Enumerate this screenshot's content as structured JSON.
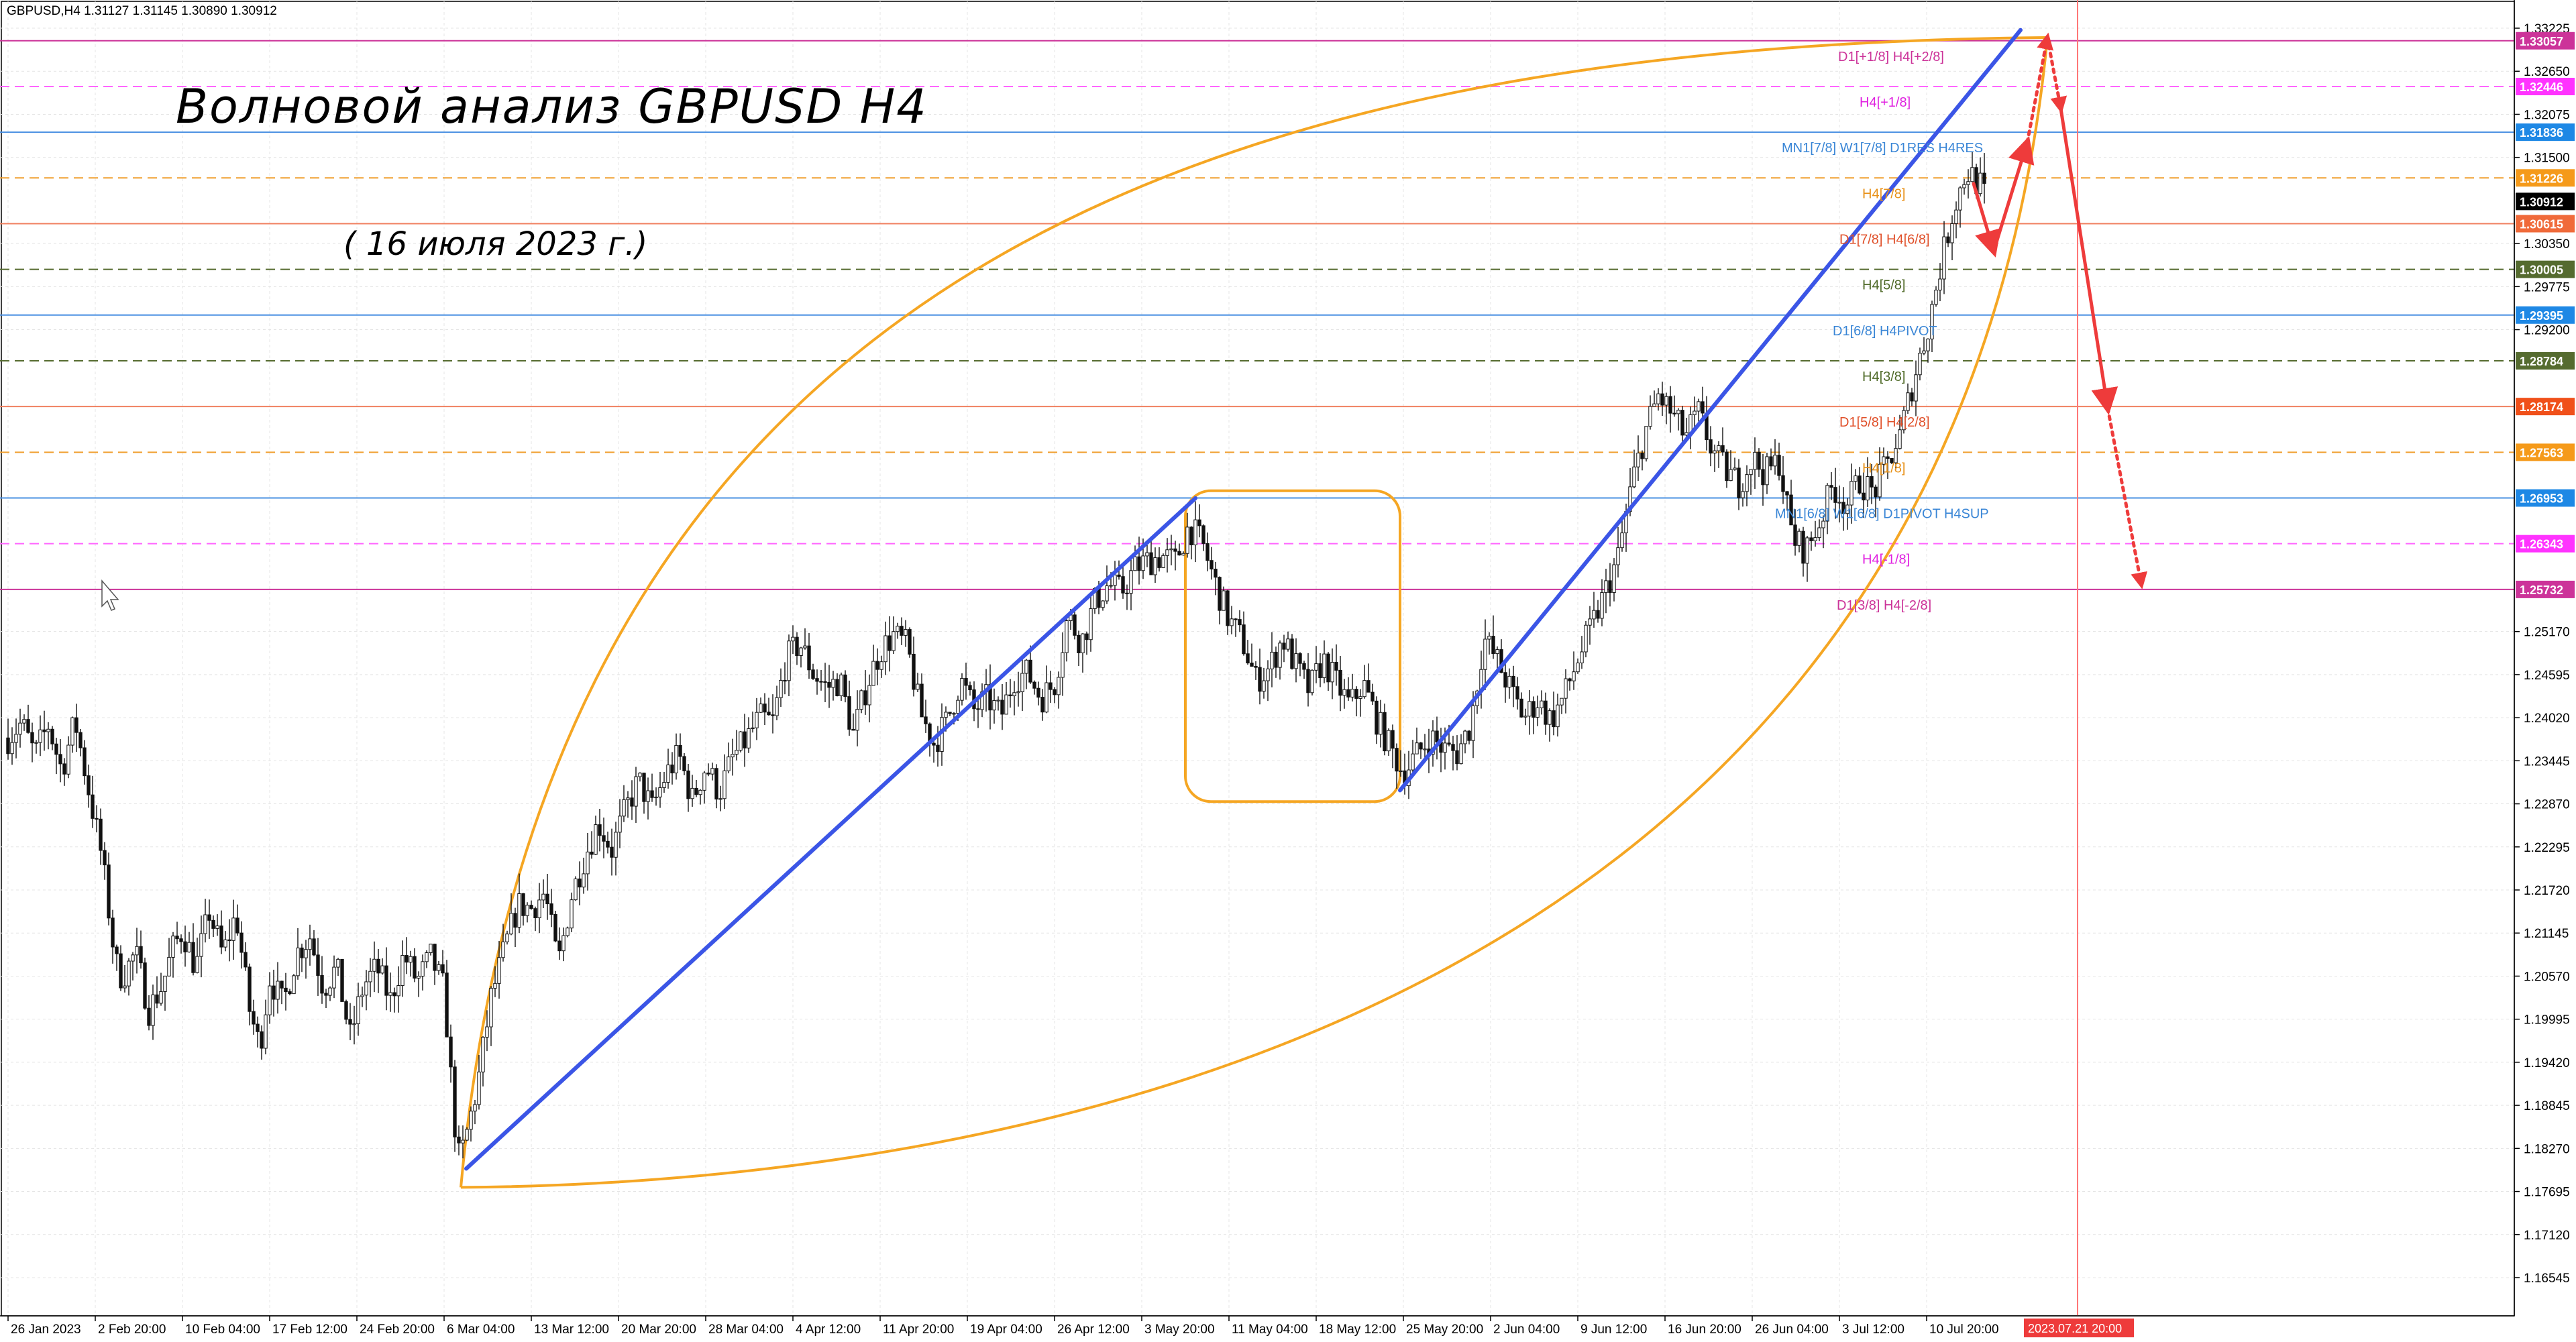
{
  "header": "GBPUSD,H4  1.31127 1.31145 1.30890 1.30912",
  "chart_data": {
    "type": "candlestick",
    "symbol": "GBPUSD",
    "timeframe": "H4",
    "title": "Волновой анализ GBPUSD H4",
    "subtitle": "( 16 июля 2023 г.)",
    "ohlc_last": {
      "open": 1.31127,
      "high": 1.31145,
      "low": 1.3089,
      "close": 1.30912
    },
    "ylim": [
      1.1615,
      1.3345
    ],
    "x_ticks": [
      "26 Jan 2023",
      "2 Feb 20:00",
      "10 Feb 04:00",
      "17 Feb 12:00",
      "24 Feb 20:00",
      "6 Mar 04:00",
      "13 Mar 12:00",
      "20 Mar 20:00",
      "28 Mar 04:00",
      "4 Apr 12:00",
      "11 Apr 20:00",
      "19 Apr 04:00",
      "26 Apr 12:00",
      "3 May 20:00",
      "11 May 04:00",
      "18 May 12:00",
      "25 May 20:00",
      "2 Jun 04:00",
      "9 Jun 12:00",
      "16 Jun 20:00",
      "26 Jun 04:00",
      "3 Jul 12:00",
      "10 Jul 20:00"
    ],
    "y_ticks": [
      1.33225,
      1.3265,
      1.32075,
      1.315,
      1.3035,
      1.29775,
      1.292,
      1.2517,
      1.24595,
      1.2402,
      1.23445,
      1.2287,
      1.22295,
      1.2172,
      1.21145,
      1.2057,
      1.19995,
      1.1942,
      1.18845,
      1.1827,
      1.17695,
      1.1712,
      1.16545
    ],
    "time_marker": "2023.07.21 20:00",
    "price_path": [
      {
        "t": 0,
        "p": 1.2375
      },
      {
        "t": 2,
        "p": 1.2395
      },
      {
        "t": 4,
        "p": 1.2352
      },
      {
        "t": 6,
        "p": 1.2392
      },
      {
        "t": 8,
        "p": 1.2332
      },
      {
        "t": 10,
        "p": 1.2398
      },
      {
        "t": 12,
        "p": 1.2306
      },
      {
        "t": 14,
        "p": 1.2215
      },
      {
        "t": 16,
        "p": 1.2075
      },
      {
        "t": 17,
        "p": 1.2055
      },
      {
        "t": 19,
        "p": 1.2088
      },
      {
        "t": 21,
        "p": 1.2012
      },
      {
        "t": 23,
        "p": 1.2045
      },
      {
        "t": 24.5,
        "p": 1.2092
      },
      {
        "t": 26,
        "p": 1.2118
      },
      {
        "t": 28,
        "p": 1.2068
      },
      {
        "t": 30,
        "p": 1.2142
      },
      {
        "t": 32,
        "p": 1.2085
      },
      {
        "t": 34,
        "p": 1.214
      },
      {
        "t": 36,
        "p": 1.2012
      },
      {
        "t": 37.5,
        "p": 1.1962
      },
      {
        "t": 39,
        "p": 1.2055
      },
      {
        "t": 41,
        "p": 1.2018
      },
      {
        "t": 43,
        "p": 1.2088
      },
      {
        "t": 45,
        "p": 1.211
      },
      {
        "t": 47,
        "p": 1.2042
      },
      {
        "t": 49,
        "p": 1.2068
      },
      {
        "t": 51,
        "p": 1.1975
      },
      {
        "t": 53,
        "p": 1.2045
      },
      {
        "t": 55,
        "p": 1.2068
      },
      {
        "t": 57,
        "p": 1.2025
      },
      {
        "t": 59,
        "p": 1.2085
      },
      {
        "t": 61,
        "p": 1.205
      },
      {
        "t": 63,
        "p": 1.2082
      },
      {
        "t": 65,
        "p": 1.2038
      },
      {
        "t": 66.5,
        "p": 1.1865
      },
      {
        "t": 67.3,
        "p": 1.1808
      },
      {
        "t": 68.5,
        "p": 1.1852
      },
      {
        "t": 70,
        "p": 1.1912
      },
      {
        "t": 72,
        "p": 1.2028
      },
      {
        "t": 74,
        "p": 1.2092
      },
      {
        "t": 76,
        "p": 1.2152
      },
      {
        "t": 78,
        "p": 1.2148
      },
      {
        "t": 80,
        "p": 1.2168
      },
      {
        "t": 82,
        "p": 1.2072
      },
      {
        "t": 84,
        "p": 1.2165
      },
      {
        "t": 86,
        "p": 1.2218
      },
      {
        "t": 88,
        "p": 1.2262
      },
      {
        "t": 90,
        "p": 1.2226
      },
      {
        "t": 92,
        "p": 1.2278
      },
      {
        "t": 94,
        "p": 1.2318
      },
      {
        "t": 96,
        "p": 1.228
      },
      {
        "t": 98,
        "p": 1.2325
      },
      {
        "t": 100,
        "p": 1.2352
      },
      {
        "t": 102,
        "p": 1.2292
      },
      {
        "t": 104,
        "p": 1.2338
      },
      {
        "t": 106,
        "p": 1.2302
      },
      {
        "t": 108,
        "p": 1.2348
      },
      {
        "t": 110,
        "p": 1.2372
      },
      {
        "t": 112,
        "p": 1.2402
      },
      {
        "t": 114,
        "p": 1.2396
      },
      {
        "t": 116,
        "p": 1.248
      },
      {
        "t": 118,
        "p": 1.2502
      },
      {
        "t": 120,
        "p": 1.2462
      },
      {
        "t": 122,
        "p": 1.2442
      },
      {
        "t": 124,
        "p": 1.2452
      },
      {
        "t": 126,
        "p": 1.238
      },
      {
        "t": 128,
        "p": 1.2445
      },
      {
        "t": 130,
        "p": 1.2492
      },
      {
        "t": 132,
        "p": 1.2512
      },
      {
        "t": 134,
        "p": 1.2498
      },
      {
        "t": 136,
        "p": 1.2408
      },
      {
        "t": 138,
        "p": 1.2368
      },
      {
        "t": 140,
        "p": 1.2398
      },
      {
        "t": 142,
        "p": 1.2452
      },
      {
        "t": 144,
        "p": 1.2412
      },
      {
        "t": 146,
        "p": 1.2428
      },
      {
        "t": 148,
        "p": 1.2404
      },
      {
        "t": 150,
        "p": 1.2455
      },
      {
        "t": 152,
        "p": 1.2462
      },
      {
        "t": 154,
        "p": 1.2428
      },
      {
        "t": 156,
        "p": 1.2448
      },
      {
        "t": 158,
        "p": 1.2538
      },
      {
        "t": 160,
        "p": 1.2502
      },
      {
        "t": 162,
        "p": 1.2556
      },
      {
        "t": 164,
        "p": 1.258
      },
      {
        "t": 166,
        "p": 1.257
      },
      {
        "t": 168,
        "p": 1.2602
      },
      {
        "t": 170,
        "p": 1.2612
      },
      {
        "t": 172,
        "p": 1.2618
      },
      {
        "t": 174,
        "p": 1.261
      },
      {
        "t": 176,
        "p": 1.2658
      },
      {
        "t": 178,
        "p": 1.2635
      },
      {
        "t": 180,
        "p": 1.258
      },
      {
        "t": 182,
        "p": 1.2532
      },
      {
        "t": 184,
        "p": 1.2505
      },
      {
        "t": 186,
        "p": 1.2452
      },
      {
        "t": 188,
        "p": 1.2468
      },
      {
        "t": 190,
        "p": 1.2508
      },
      {
        "t": 192,
        "p": 1.247
      },
      {
        "t": 194,
        "p": 1.2438
      },
      {
        "t": 196,
        "p": 1.248
      },
      {
        "t": 198,
        "p": 1.2448
      },
      {
        "t": 200,
        "p": 1.2418
      },
      {
        "t": 202,
        "p": 1.2448
      },
      {
        "t": 204,
        "p": 1.24
      },
      {
        "t": 206,
        "p": 1.2362
      },
      {
        "t": 208,
        "p": 1.2328
      },
      {
        "t": 210,
        "p": 1.2352
      },
      {
        "t": 212,
        "p": 1.2376
      },
      {
        "t": 214,
        "p": 1.236
      },
      {
        "t": 216,
        "p": 1.2355
      },
      {
        "t": 218,
        "p": 1.2392
      },
      {
        "t": 220,
        "p": 1.2508
      },
      {
        "t": 222,
        "p": 1.2478
      },
      {
        "t": 224,
        "p": 1.2438
      },
      {
        "t": 226,
        "p": 1.2402
      },
      {
        "t": 228,
        "p": 1.2425
      },
      {
        "t": 230,
        "p": 1.2398
      },
      {
        "t": 232,
        "p": 1.2432
      },
      {
        "t": 234,
        "p": 1.248
      },
      {
        "t": 236,
        "p": 1.2522
      },
      {
        "t": 238,
        "p": 1.2568
      },
      {
        "t": 240,
        "p": 1.2616
      },
      {
        "t": 242,
        "p": 1.2712
      },
      {
        "t": 244,
        "p": 1.2782
      },
      {
        "t": 246,
        "p": 1.2832
      },
      {
        "t": 248,
        "p": 1.2808
      },
      {
        "t": 250,
        "p": 1.2778
      },
      {
        "t": 252,
        "p": 1.2808
      },
      {
        "t": 254,
        "p": 1.276
      },
      {
        "t": 256,
        "p": 1.2732
      },
      {
        "t": 258,
        "p": 1.2715
      },
      {
        "t": 260,
        "p": 1.2748
      },
      {
        "t": 262,
        "p": 1.2728
      },
      {
        "t": 264,
        "p": 1.2745
      },
      {
        "t": 266,
        "p": 1.2642
      },
      {
        "t": 268,
        "p": 1.2625
      },
      {
        "t": 270,
        "p": 1.2662
      },
      {
        "t": 272,
        "p": 1.2712
      },
      {
        "t": 274,
        "p": 1.2686
      },
      {
        "t": 276,
        "p": 1.2718
      },
      {
        "t": 278,
        "p": 1.2702
      },
      {
        "t": 280,
        "p": 1.2738
      },
      {
        "t": 282,
        "p": 1.2778
      },
      {
        "t": 284,
        "p": 1.2852
      },
      {
        "t": 286,
        "p": 1.2915
      },
      {
        "t": 288,
        "p": 1.3002
      },
      {
        "t": 290,
        "p": 1.3082
      },
      {
        "t": 292,
        "p": 1.3132
      },
      {
        "t": 294,
        "p": 1.3112
      },
      {
        "t": 295,
        "p": 1.3091
      }
    ],
    "levels": [
      {
        "price": 1.33057,
        "label": "D1[+1/8] H4[+2/8]",
        "color": "#cc3399",
        "style": "solid",
        "label_color": "#cc3399",
        "label_x": 2740
      },
      {
        "price": 1.32446,
        "label": "H4[+1/8]",
        "color": "#ff66ff",
        "style": "dashed",
        "label_color": "#e020e0",
        "label_x": 2772
      },
      {
        "price": 1.31836,
        "label": "MN1[7/8] W1[7/8] D1RES H4RES",
        "color": "#4a90e2",
        "style": "solid",
        "label_color": "#3a86d6",
        "label_x": 2656
      },
      {
        "price": 1.31226,
        "label": "H4[7/8]",
        "color": "#f0a030",
        "style": "dashed",
        "label_color": "#e89118",
        "label_x": 2776
      },
      {
        "price": 1.30615,
        "label": "D1[7/8] H4[6/8]",
        "color": "#f08060",
        "style": "solid",
        "label_color": "#e0502a",
        "label_x": 2742
      },
      {
        "price": 1.30005,
        "label": "H4[5/8]",
        "color": "#556b2f",
        "style": "dashed",
        "label_color": "#4f6a28",
        "label_x": 2776
      },
      {
        "price": 1.29395,
        "label": "D1[6/8] H4PIVOT",
        "color": "#4a90e2",
        "style": "solid",
        "label_color": "#3a86d6",
        "label_x": 2732
      },
      {
        "price": 1.28784,
        "label": "H4[3/8]",
        "color": "#556b2f",
        "style": "dashed",
        "label_color": "#4f6a28",
        "label_x": 2776
      },
      {
        "price": 1.28174,
        "label": "D1[5/8] H4[2/8]",
        "color": "#f08060",
        "style": "solid",
        "label_color": "#e0502a",
        "label_x": 2742
      },
      {
        "price": 1.27563,
        "label": "H4[1/8]",
        "color": "#f0a030",
        "style": "dashed",
        "label_color": "#e89118",
        "label_x": 2776
      },
      {
        "price": 1.26953,
        "label": "MN1[6/8] W1[6/8] D1PIVOT H4SUP",
        "color": "#4a90e2",
        "style": "solid",
        "label_color": "#3a86d6",
        "label_x": 2646
      },
      {
        "price": 1.26343,
        "label": "H4[-1/8]",
        "color": "#ff66ff",
        "style": "dashed",
        "label_color": "#e020e0",
        "label_x": 2776
      },
      {
        "price": 1.25732,
        "label": "D1[3/8] H4[-2/8]",
        "color": "#cc3399",
        "style": "solid",
        "label_color": "#cc3399",
        "label_x": 2738
      }
    ],
    "price_tags": [
      {
        "price": 1.33057,
        "text": "1.33057",
        "color": "#cc3399"
      },
      {
        "price": 1.32446,
        "text": "1.32446",
        "color": "#ff33ff"
      },
      {
        "price": 1.31836,
        "text": "1.31836",
        "color": "#1e88e5"
      },
      {
        "price": 1.31226,
        "text": "1.31226",
        "color": "#f59a1a"
      },
      {
        "price": 1.30912,
        "text": "1.30912",
        "color": "#000000"
      },
      {
        "price": 1.30615,
        "text": "1.30615",
        "color": "#f06a3a"
      },
      {
        "price": 1.30005,
        "text": "1.30005",
        "color": "#556b2f"
      },
      {
        "price": 1.29395,
        "text": "1.29395",
        "color": "#1e88e5"
      },
      {
        "price": 1.28784,
        "text": "1.28784",
        "color": "#556b2f"
      },
      {
        "price": 1.28174,
        "text": "1.28174",
        "color": "#f0501a"
      },
      {
        "price": 1.27563,
        "text": "1.27563",
        "color": "#f59a1a"
      },
      {
        "price": 1.26953,
        "text": "1.26953",
        "color": "#1e88e5"
      },
      {
        "price": 1.26343,
        "text": "1.26343",
        "color": "#ff33ff"
      },
      {
        "price": 1.25732,
        "text": "1.25732",
        "color": "#cc3399"
      }
    ],
    "trend_lines": [
      {
        "from": {
          "t": 68.3,
          "p": 1.18
        },
        "to": {
          "t": 177,
          "p": 1.2695
        }
      },
      {
        "from": {
          "t": 207.5,
          "p": 1.2305
        },
        "to": {
          "t": 300,
          "p": 1.332
        }
      }
    ],
    "forecast": {
      "solid": [
        {
          "t": 293,
          "p": 1.3115
        },
        {
          "t": 296,
          "p": 1.3025
        },
        {
          "t": 301,
          "p": 1.317
        }
      ],
      "dotted_up": [
        {
          "t": 301,
          "p": 1.317
        },
        {
          "t": 304,
          "p": 1.331
        }
      ],
      "dotted_down": [
        {
          "t": 304,
          "p": 1.331
        },
        {
          "t": 306,
          "p": 1.3215
        }
      ],
      "solid_down": [
        {
          "t": 306,
          "p": 1.3215
        },
        {
          "t": 313,
          "p": 1.2815
        }
      ],
      "dotted_final": [
        {
          "t": 313,
          "p": 1.2815
        },
        {
          "t": 318,
          "p": 1.258
        }
      ]
    }
  },
  "colors": {
    "orange": "#f5a623",
    "blue": "#3b55e6",
    "red": "#ee3b3b",
    "up_candle": "#ffffff",
    "down_candle": "#111111"
  }
}
